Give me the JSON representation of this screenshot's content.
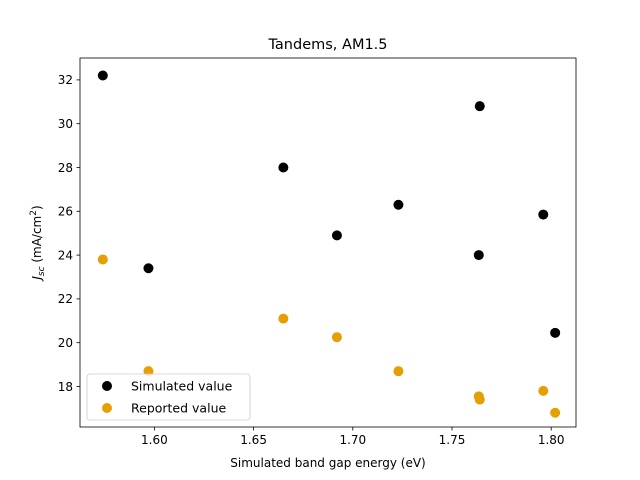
{
  "chart_data": {
    "type": "scatter",
    "title": "Tandems, AM1.5",
    "xlabel": "Simulated band gap energy (eV)",
    "ylabel": {
      "symbol": "J",
      "subscript": "sc",
      "unit_open": " (mA/cm",
      "superscript": "2",
      "unit_close": ")"
    },
    "xlim": [
      1.5625,
      1.8125
    ],
    "ylim": [
      16.15,
      33.0
    ],
    "xticks": [
      1.6,
      1.65,
      1.7,
      1.75,
      1.8
    ],
    "xtick_labels": [
      "1.60",
      "1.65",
      "1.70",
      "1.75",
      "1.80"
    ],
    "yticks": [
      18,
      20,
      22,
      24,
      26,
      28,
      30,
      32
    ],
    "ytick_labels": [
      "18",
      "20",
      "22",
      "24",
      "26",
      "28",
      "30",
      "32"
    ],
    "grid": false,
    "legend_position": "lower-left",
    "series": [
      {
        "name": "Simulated value",
        "color": "#000000",
        "points": [
          {
            "x": 1.574,
            "y": 32.2
          },
          {
            "x": 1.597,
            "y": 23.4
          },
          {
            "x": 1.665,
            "y": 28.0
          },
          {
            "x": 1.692,
            "y": 24.9
          },
          {
            "x": 1.723,
            "y": 26.3
          },
          {
            "x": 1.7635,
            "y": 24.0
          },
          {
            "x": 1.764,
            "y": 30.8
          },
          {
            "x": 1.796,
            "y": 25.85
          },
          {
            "x": 1.802,
            "y": 20.45
          }
        ]
      },
      {
        "name": "Reported value",
        "color": "#e69f00",
        "points": [
          {
            "x": 1.574,
            "y": 23.8
          },
          {
            "x": 1.597,
            "y": 18.7
          },
          {
            "x": 1.665,
            "y": 21.1
          },
          {
            "x": 1.692,
            "y": 20.25
          },
          {
            "x": 1.723,
            "y": 18.7
          },
          {
            "x": 1.7635,
            "y": 17.55
          },
          {
            "x": 1.764,
            "y": 17.4
          },
          {
            "x": 1.796,
            "y": 17.8
          },
          {
            "x": 1.802,
            "y": 16.8
          }
        ]
      }
    ]
  }
}
